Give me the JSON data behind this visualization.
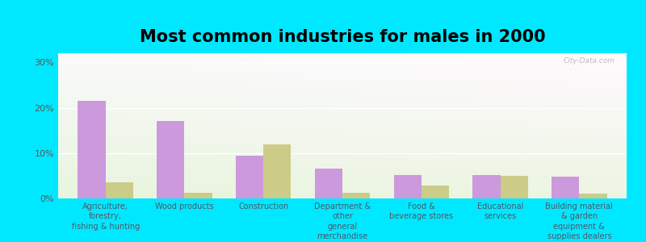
{
  "title": "Most common industries for males in 2000",
  "categories": [
    "Agriculture,\nforestry,\nfishing & hunting",
    "Wood products",
    "Construction",
    "Department &\nother\ngeneral\nmerchandise\nstores",
    "Food &\nbeverage stores",
    "Educational\nservices",
    "Building material\n& garden\nequipment &\nsupplies dealers"
  ],
  "dewitt": [
    21.5,
    17.0,
    9.5,
    6.5,
    5.2,
    5.2,
    4.8
  ],
  "kentucky": [
    3.5,
    1.2,
    12.0,
    1.2,
    2.8,
    5.0,
    1.0
  ],
  "dewitt_color": "#cc99dd",
  "kentucky_color": "#cccc88",
  "ylim": [
    0,
    32
  ],
  "yticks": [
    0,
    10,
    20,
    30
  ],
  "ytick_labels": [
    "0%",
    "10%",
    "20%",
    "30%"
  ],
  "outer_background": "#00e8ff",
  "bar_width": 0.35,
  "title_fontsize": 15,
  "tick_fontsize": 7,
  "legend_fontsize": 9,
  "watermark": "City-Data.com"
}
